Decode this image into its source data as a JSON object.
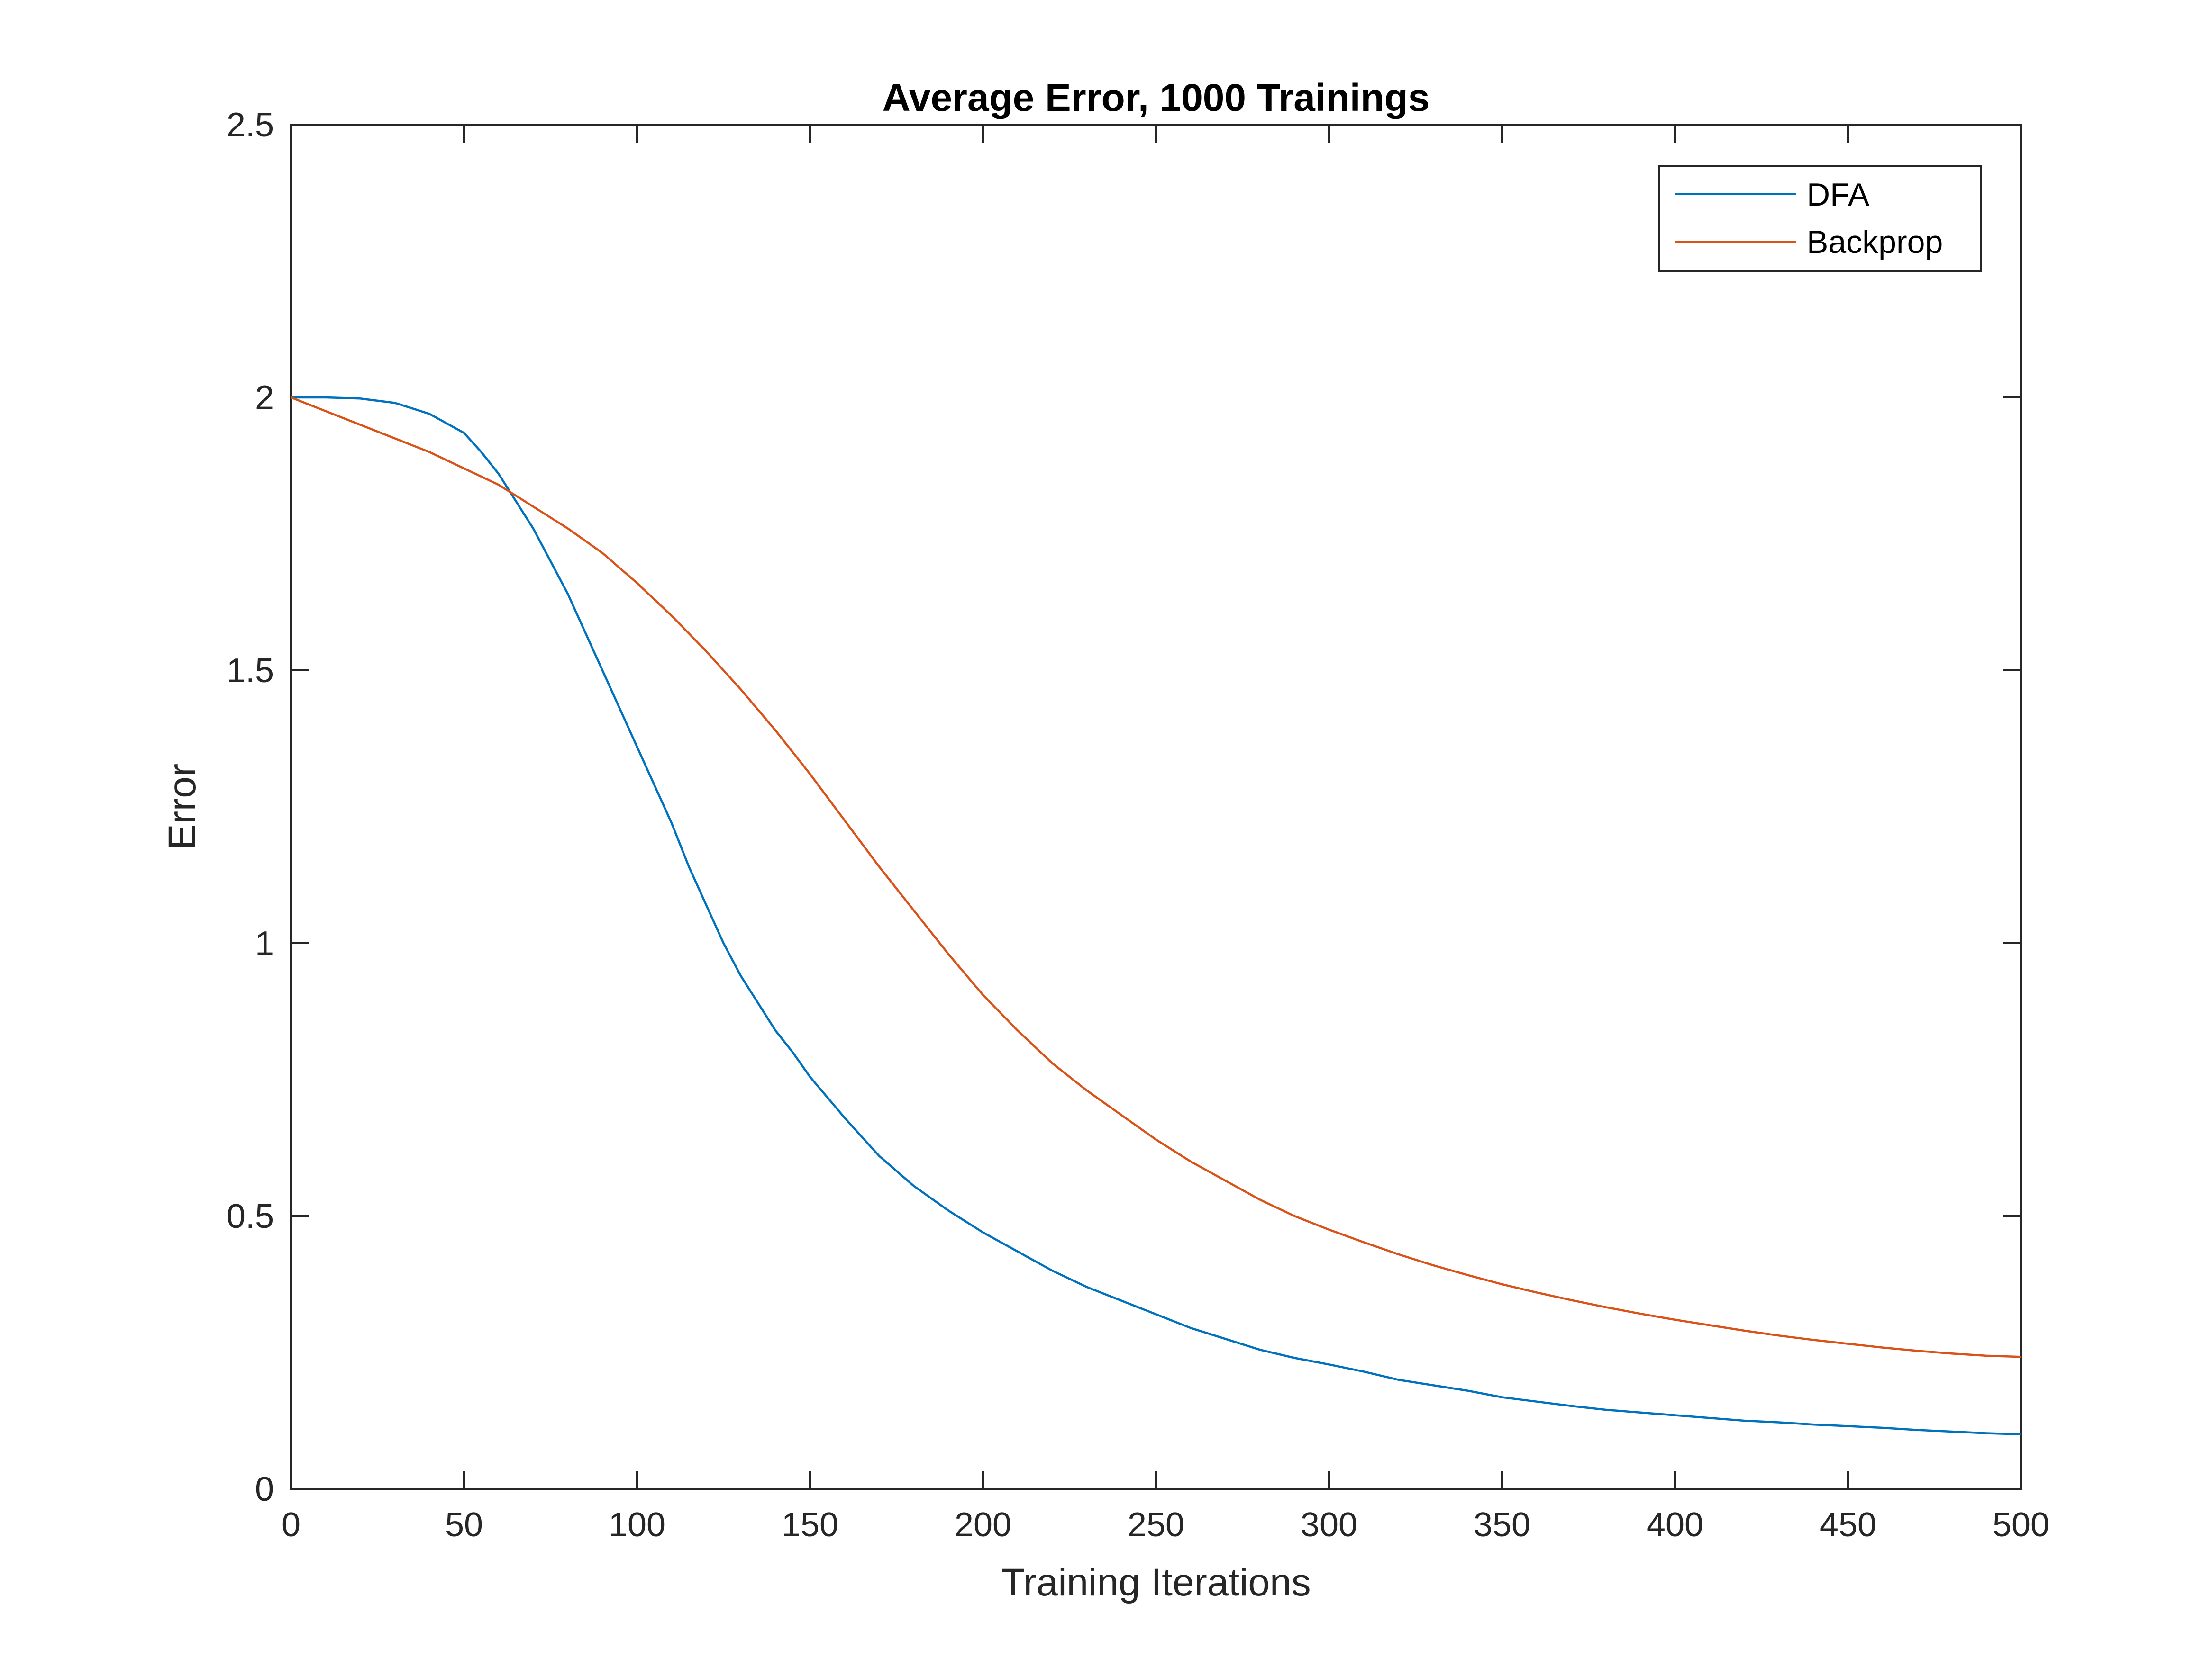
{
  "chart_data": {
    "type": "line",
    "title": "Average Error, 1000 Trainings",
    "xlabel": "Training Iterations",
    "ylabel": "Error",
    "xlim": [
      0,
      500
    ],
    "ylim": [
      0,
      2.5
    ],
    "xticks": [
      "0",
      "50",
      "100",
      "150",
      "200",
      "250",
      "300",
      "350",
      "400",
      "450",
      "500"
    ],
    "yticks": [
      "0",
      "0.5",
      "1",
      "1.5",
      "2",
      "2.5"
    ],
    "grid": false,
    "legend_position": "top-right",
    "series": [
      {
        "name": "DFA",
        "color": "#0072BD",
        "x": [
          0,
          10,
          20,
          30,
          40,
          50,
          55,
          60,
          65,
          70,
          75,
          80,
          85,
          90,
          95,
          100,
          105,
          110,
          115,
          120,
          125,
          130,
          135,
          140,
          145,
          150,
          160,
          170,
          180,
          190,
          200,
          210,
          220,
          230,
          240,
          250,
          260,
          270,
          280,
          290,
          300,
          310,
          320,
          330,
          340,
          350,
          360,
          370,
          380,
          390,
          400,
          410,
          420,
          430,
          440,
          450,
          460,
          470,
          480,
          490,
          500
        ],
        "values": [
          2.0,
          2.0,
          1.998,
          1.99,
          1.97,
          1.935,
          1.9,
          1.86,
          1.81,
          1.76,
          1.7,
          1.64,
          1.57,
          1.5,
          1.43,
          1.36,
          1.29,
          1.22,
          1.14,
          1.07,
          1.0,
          0.94,
          0.89,
          0.84,
          0.8,
          0.755,
          0.68,
          0.61,
          0.555,
          0.51,
          0.47,
          0.435,
          0.4,
          0.37,
          0.345,
          0.32,
          0.295,
          0.275,
          0.255,
          0.24,
          0.228,
          0.215,
          0.2,
          0.19,
          0.18,
          0.168,
          0.16,
          0.152,
          0.145,
          0.14,
          0.135,
          0.13,
          0.125,
          0.122,
          0.118,
          0.115,
          0.112,
          0.108,
          0.105,
          0.102,
          0.1
        ]
      },
      {
        "name": "Backprop",
        "color": "#D95319",
        "x": [
          0,
          10,
          20,
          30,
          40,
          50,
          60,
          70,
          80,
          90,
          100,
          110,
          120,
          130,
          140,
          150,
          160,
          170,
          180,
          190,
          200,
          210,
          220,
          230,
          240,
          250,
          260,
          270,
          280,
          290,
          300,
          310,
          320,
          330,
          340,
          350,
          360,
          370,
          380,
          390,
          400,
          410,
          420,
          430,
          440,
          450,
          460,
          470,
          480,
          490,
          500
        ],
        "values": [
          2.0,
          1.975,
          1.95,
          1.925,
          1.9,
          1.87,
          1.84,
          1.8,
          1.76,
          1.715,
          1.66,
          1.6,
          1.535,
          1.465,
          1.39,
          1.31,
          1.225,
          1.14,
          1.06,
          0.98,
          0.905,
          0.84,
          0.78,
          0.73,
          0.685,
          0.64,
          0.6,
          0.565,
          0.53,
          0.5,
          0.475,
          0.452,
          0.43,
          0.41,
          0.392,
          0.375,
          0.36,
          0.346,
          0.333,
          0.321,
          0.31,
          0.3,
          0.29,
          0.281,
          0.273,
          0.266,
          0.259,
          0.253,
          0.248,
          0.244,
          0.242
        ]
      }
    ]
  }
}
